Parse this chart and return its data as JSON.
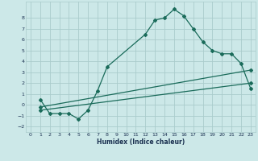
{
  "xlabel": "Humidex (Indice chaleur)",
  "bg_color": "#cce8e8",
  "grid_color": "#aacccc",
  "line_color": "#1a6b5a",
  "xlim": [
    -0.5,
    23.5
  ],
  "ylim": [
    -2.5,
    9.5
  ],
  "xticks": [
    0,
    1,
    2,
    3,
    4,
    5,
    6,
    7,
    8,
    9,
    10,
    11,
    12,
    13,
    14,
    15,
    16,
    17,
    18,
    19,
    20,
    21,
    22,
    23
  ],
  "yticks": [
    -2,
    -1,
    0,
    1,
    2,
    3,
    4,
    5,
    6,
    7,
    8
  ],
  "line1_x": [
    1,
    2,
    3,
    4,
    5,
    6,
    7,
    8,
    12,
    13,
    14,
    15,
    16,
    17,
    18,
    19,
    20,
    21,
    22,
    23
  ],
  "line1_y": [
    0.5,
    -0.8,
    -0.8,
    -0.8,
    -1.3,
    -0.5,
    1.3,
    3.5,
    6.5,
    7.8,
    8.0,
    8.8,
    8.2,
    7.0,
    5.8,
    5.0,
    4.7,
    4.7,
    3.8,
    1.5
  ],
  "line2_x": [
    1,
    23
  ],
  "line2_y": [
    -0.2,
    3.2
  ],
  "line3_x": [
    1,
    23
  ],
  "line3_y": [
    -0.5,
    2.0
  ]
}
